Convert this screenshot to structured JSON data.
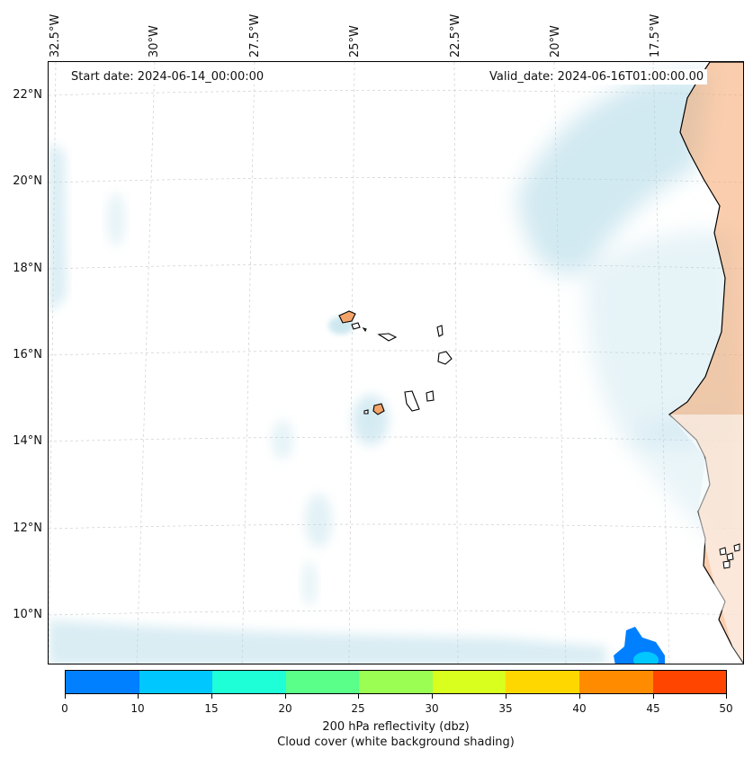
{
  "map": {
    "start_date": "Start date: 2024-06-14_00:00:00",
    "valid_date": "Valid_date: 2024-06-16T01:00:00.00",
    "latitude_labels": [
      "22°N",
      "20°N",
      "18°N",
      "16°N",
      "14°N",
      "12°N",
      "10°N"
    ],
    "longitude_labels": [
      "32.5°W",
      "30°W",
      "27.5°W",
      "25°W",
      "22.5°W",
      "20°W",
      "17.5°W"
    ],
    "land_color": "#f4a46a",
    "cloud_color": "#add8e6"
  },
  "colorbar": {
    "ticks": [
      "0",
      "10",
      "15",
      "20",
      "25",
      "30",
      "35",
      "40",
      "45",
      "50"
    ],
    "colors": [
      "#0080ff",
      "#00c8ff",
      "#1effd8",
      "#5aff8a",
      "#9aff52",
      "#d8ff1e",
      "#ffd700",
      "#ff8c00",
      "#ff4500"
    ],
    "title_line1": "200 hPa reflectivity (dbz)",
    "title_line2": "Cloud cover (white background shading)"
  }
}
